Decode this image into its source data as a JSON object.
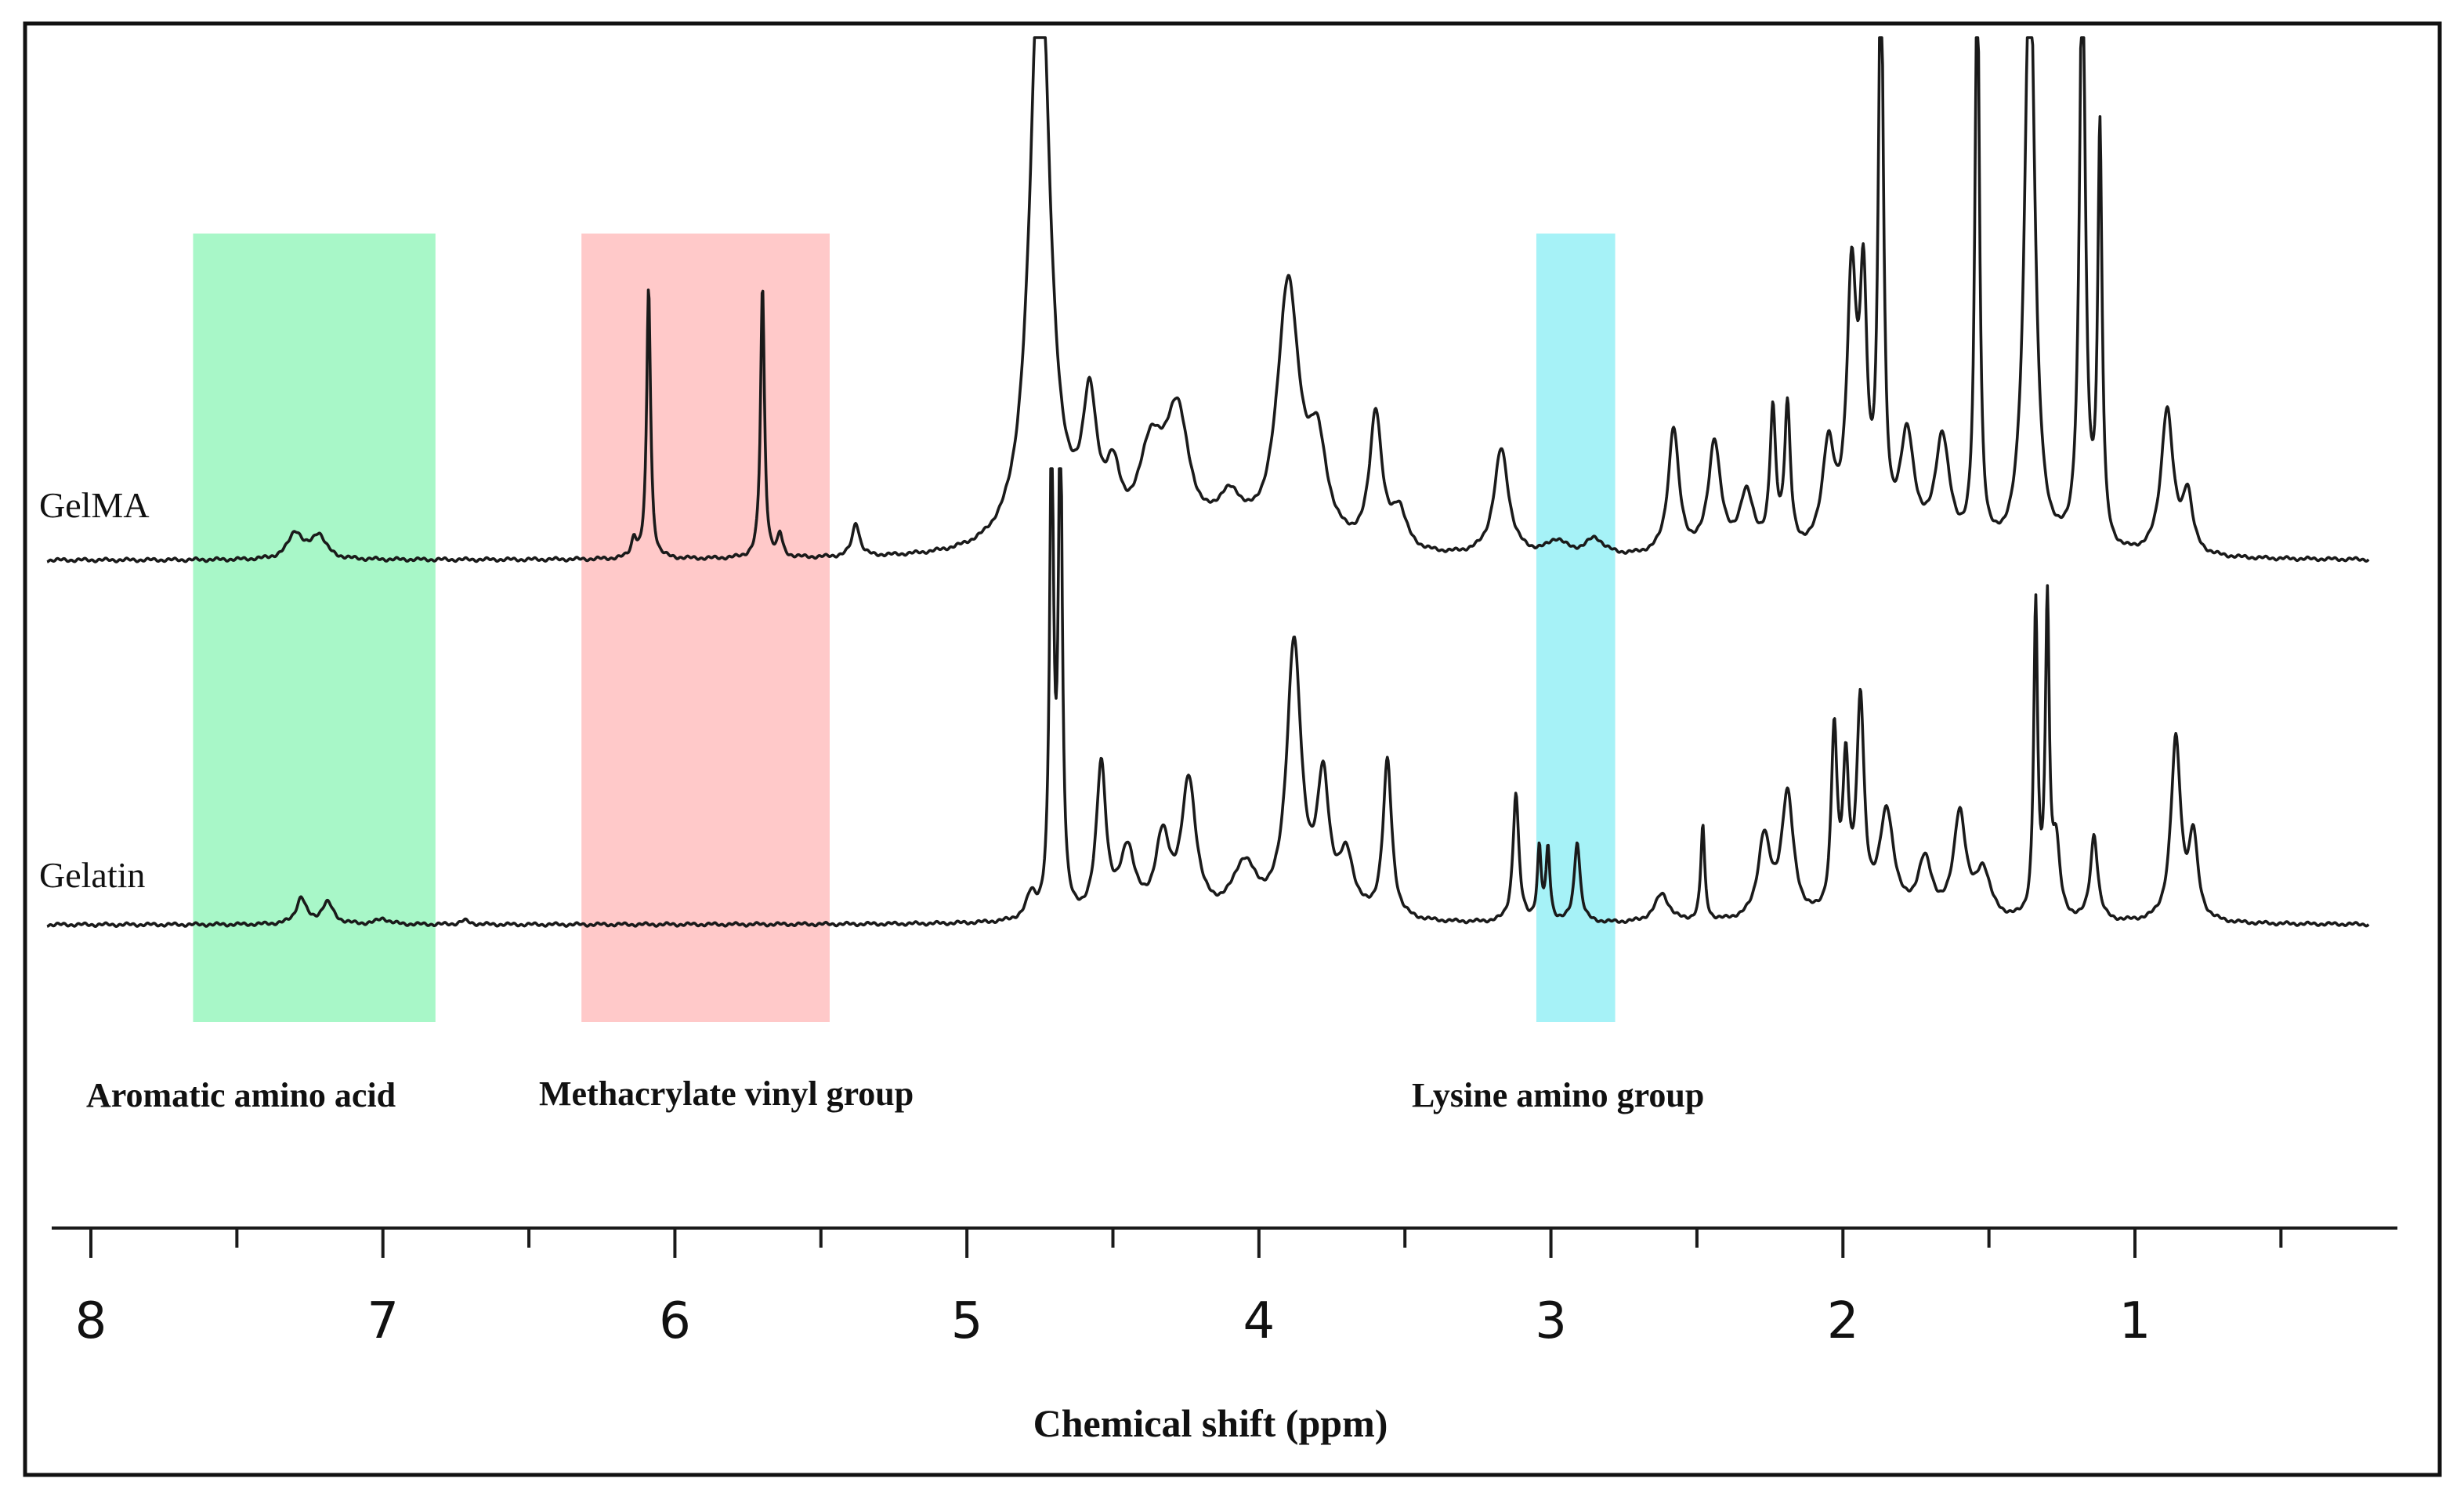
{
  "chart_data": {
    "type": "line",
    "title": "",
    "xlabel": "Chemical shift (ppm)",
    "ylabel": "",
    "xlim": [
      8.2,
      0.2
    ],
    "x_direction": "reversed",
    "xticks_major": [
      8,
      7,
      6,
      5,
      4,
      3,
      2,
      1
    ],
    "xticks_minor": [
      7.5,
      6.5,
      5.5,
      4.5,
      3.5,
      2.5,
      1.5,
      0.5
    ],
    "tick_labels": [
      "8",
      "7",
      "6",
      "5",
      "4",
      "3",
      "2",
      "1"
    ],
    "grid": false,
    "series": [
      {
        "name": "GelMA",
        "label": "GelMA",
        "baseline": 0,
        "peaks": [
          {
            "ppm": 7.3,
            "h": 0.055,
            "w": 0.03
          },
          {
            "ppm": 7.22,
            "h": 0.05,
            "w": 0.03
          },
          {
            "ppm": 6.09,
            "h": 0.56,
            "w": 0.008
          },
          {
            "ppm": 6.14,
            "h": 0.04,
            "w": 0.01
          },
          {
            "ppm": 5.7,
            "h": 0.56,
            "w": 0.008
          },
          {
            "ppm": 5.64,
            "h": 0.045,
            "w": 0.01
          },
          {
            "ppm": 5.38,
            "h": 0.07,
            "w": 0.015
          },
          {
            "ppm": 4.75,
            "h": 1.3,
            "w": 0.04
          },
          {
            "ppm": 4.58,
            "h": 0.27,
            "w": 0.03
          },
          {
            "ppm": 4.5,
            "h": 0.12,
            "w": 0.03
          },
          {
            "ppm": 4.37,
            "h": 0.18,
            "w": 0.05
          },
          {
            "ppm": 4.28,
            "h": 0.26,
            "w": 0.05
          },
          {
            "ppm": 4.1,
            "h": 0.09,
            "w": 0.06
          },
          {
            "ppm": 3.9,
            "h": 0.54,
            "w": 0.045
          },
          {
            "ppm": 3.8,
            "h": 0.19,
            "w": 0.04
          },
          {
            "ppm": 3.6,
            "h": 0.28,
            "w": 0.025
          },
          {
            "ppm": 3.52,
            "h": 0.08,
            "w": 0.03
          },
          {
            "ppm": 3.17,
            "h": 0.22,
            "w": 0.03
          },
          {
            "ppm": 2.98,
            "h": 0.03,
            "w": 0.04
          },
          {
            "ppm": 2.85,
            "h": 0.035,
            "w": 0.04
          },
          {
            "ppm": 2.58,
            "h": 0.26,
            "w": 0.022
          },
          {
            "ppm": 2.44,
            "h": 0.23,
            "w": 0.025
          },
          {
            "ppm": 2.33,
            "h": 0.12,
            "w": 0.03
          },
          {
            "ppm": 2.24,
            "h": 0.28,
            "w": 0.012
          },
          {
            "ppm": 2.19,
            "h": 0.29,
            "w": 0.012
          },
          {
            "ppm": 2.05,
            "h": 0.21,
            "w": 0.025
          },
          {
            "ppm": 1.97,
            "h": 0.54,
            "w": 0.02
          },
          {
            "ppm": 1.93,
            "h": 0.48,
            "w": 0.015
          },
          {
            "ppm": 1.87,
            "h": 1.25,
            "w": 0.01
          },
          {
            "ppm": 1.78,
            "h": 0.23,
            "w": 0.03
          },
          {
            "ppm": 1.66,
            "h": 0.23,
            "w": 0.03
          },
          {
            "ppm": 1.54,
            "h": 1.25,
            "w": 0.009
          },
          {
            "ppm": 1.36,
            "h": 1.3,
            "w": 0.02
          },
          {
            "ppm": 1.18,
            "h": 1.25,
            "w": 0.012
          },
          {
            "ppm": 1.12,
            "h": 0.85,
            "w": 0.009
          },
          {
            "ppm": 0.89,
            "h": 0.3,
            "w": 0.025
          },
          {
            "ppm": 0.82,
            "h": 0.12,
            "w": 0.02
          }
        ]
      },
      {
        "name": "Gelatin",
        "label": "Gelatin",
        "baseline": 0,
        "peaks": [
          {
            "ppm": 7.28,
            "h": 0.055,
            "w": 0.02
          },
          {
            "ppm": 7.19,
            "h": 0.045,
            "w": 0.025
          },
          {
            "ppm": 7.0,
            "h": 0.012,
            "w": 0.025
          },
          {
            "ppm": 6.72,
            "h": 0.008,
            "w": 0.02
          },
          {
            "ppm": 4.71,
            "h": 1.02,
            "w": 0.008
          },
          {
            "ppm": 4.68,
            "h": 1.05,
            "w": 0.008
          },
          {
            "ppm": 4.78,
            "h": 0.05,
            "w": 0.02
          },
          {
            "ppm": 4.54,
            "h": 0.32,
            "w": 0.02
          },
          {
            "ppm": 4.45,
            "h": 0.14,
            "w": 0.03
          },
          {
            "ppm": 4.33,
            "h": 0.16,
            "w": 0.03
          },
          {
            "ppm": 4.24,
            "h": 0.28,
            "w": 0.03
          },
          {
            "ppm": 4.05,
            "h": 0.11,
            "w": 0.05
          },
          {
            "ppm": 3.88,
            "h": 0.57,
            "w": 0.03
          },
          {
            "ppm": 3.78,
            "h": 0.27,
            "w": 0.025
          },
          {
            "ppm": 3.7,
            "h": 0.12,
            "w": 0.03
          },
          {
            "ppm": 3.56,
            "h": 0.33,
            "w": 0.018
          },
          {
            "ppm": 3.12,
            "h": 0.27,
            "w": 0.012
          },
          {
            "ppm": 3.04,
            "h": 0.15,
            "w": 0.008
          },
          {
            "ppm": 3.01,
            "h": 0.15,
            "w": 0.008
          },
          {
            "ppm": 2.91,
            "h": 0.17,
            "w": 0.012
          },
          {
            "ppm": 2.62,
            "h": 0.06,
            "w": 0.03
          },
          {
            "ppm": 2.48,
            "h": 0.2,
            "w": 0.008
          },
          {
            "ppm": 2.27,
            "h": 0.17,
            "w": 0.025
          },
          {
            "ppm": 2.19,
            "h": 0.26,
            "w": 0.025
          },
          {
            "ppm": 2.03,
            "h": 0.38,
            "w": 0.012
          },
          {
            "ppm": 1.99,
            "h": 0.3,
            "w": 0.012
          },
          {
            "ppm": 1.94,
            "h": 0.44,
            "w": 0.015
          },
          {
            "ppm": 1.85,
            "h": 0.22,
            "w": 0.03
          },
          {
            "ppm": 1.72,
            "h": 0.12,
            "w": 0.03
          },
          {
            "ppm": 1.6,
            "h": 0.22,
            "w": 0.025
          },
          {
            "ppm": 1.52,
            "h": 0.1,
            "w": 0.03
          },
          {
            "ppm": 1.34,
            "h": 0.65,
            "w": 0.008
          },
          {
            "ppm": 1.3,
            "h": 0.65,
            "w": 0.008
          },
          {
            "ppm": 1.27,
            "h": 0.15,
            "w": 0.015
          },
          {
            "ppm": 1.14,
            "h": 0.18,
            "w": 0.015
          },
          {
            "ppm": 0.86,
            "h": 0.38,
            "w": 0.02
          },
          {
            "ppm": 0.8,
            "h": 0.17,
            "w": 0.018
          }
        ]
      }
    ],
    "regions": [
      {
        "name": "aromatic",
        "label": "Aromatic amino acid",
        "ppm_range": [
          7.65,
          6.82
        ],
        "color": "#a8f7c8"
      },
      {
        "name": "methacrylate",
        "label": "Methacrylate vinyl group",
        "ppm_range": [
          6.32,
          5.47
        ],
        "color": "#ffc9c9"
      },
      {
        "name": "lysine",
        "label": "Lysine amino group",
        "ppm_range": [
          3.05,
          2.78
        ],
        "color": "#a6f2f7"
      }
    ]
  }
}
